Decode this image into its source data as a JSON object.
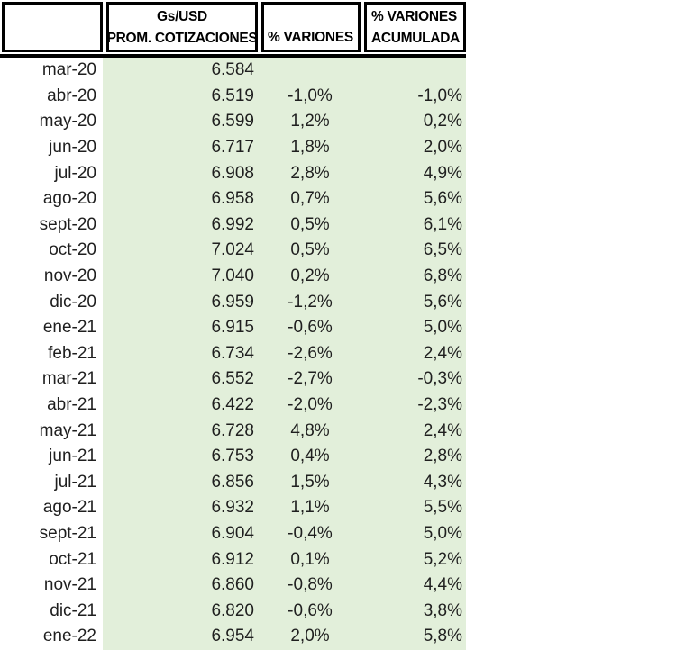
{
  "colors": {
    "fill_green": "#e2efda",
    "border_black": "#000000",
    "data_text": "#1f1f1f",
    "header_bg": "#ffffff"
  },
  "chart_data": {
    "type": "table",
    "columns": [
      {
        "line1": "",
        "line2": ""
      },
      {
        "line1": "Gs/USD",
        "line2": "PROM. COTIZACIONES"
      },
      {
        "line1": "",
        "line2": "% VARIONES"
      },
      {
        "line1": "% VARIONES",
        "line2": "ACUMULADA"
      }
    ],
    "rows": [
      {
        "month": "mar-20",
        "rate": "6.584",
        "var": "",
        "var_acum": ""
      },
      {
        "month": "abr-20",
        "rate": "6.519",
        "var": "-1,0%",
        "var_acum": "-1,0%"
      },
      {
        "month": "may-20",
        "rate": "6.599",
        "var": "1,2%",
        "var_acum": "0,2%"
      },
      {
        "month": "jun-20",
        "rate": "6.717",
        "var": "1,8%",
        "var_acum": "2,0%"
      },
      {
        "month": "jul-20",
        "rate": "6.908",
        "var": "2,8%",
        "var_acum": "4,9%"
      },
      {
        "month": "ago-20",
        "rate": "6.958",
        "var": "0,7%",
        "var_acum": "5,6%"
      },
      {
        "month": "sept-20",
        "rate": "6.992",
        "var": "0,5%",
        "var_acum": "6,1%"
      },
      {
        "month": "oct-20",
        "rate": "7.024",
        "var": "0,5%",
        "var_acum": "6,5%"
      },
      {
        "month": "nov-20",
        "rate": "7.040",
        "var": "0,2%",
        "var_acum": "6,8%"
      },
      {
        "month": "dic-20",
        "rate": "6.959",
        "var": "-1,2%",
        "var_acum": "5,6%"
      },
      {
        "month": "ene-21",
        "rate": "6.915",
        "var": "-0,6%",
        "var_acum": "5,0%"
      },
      {
        "month": "feb-21",
        "rate": "6.734",
        "var": "-2,6%",
        "var_acum": "2,4%"
      },
      {
        "month": "mar-21",
        "rate": "6.552",
        "var": "-2,7%",
        "var_acum": "-0,3%"
      },
      {
        "month": "abr-21",
        "rate": "6.422",
        "var": "-2,0%",
        "var_acum": "-2,3%"
      },
      {
        "month": "may-21",
        "rate": "6.728",
        "var": "4,8%",
        "var_acum": "2,4%"
      },
      {
        "month": "jun-21",
        "rate": "6.753",
        "var": "0,4%",
        "var_acum": "2,8%"
      },
      {
        "month": "jul-21",
        "rate": "6.856",
        "var": "1,5%",
        "var_acum": "4,3%"
      },
      {
        "month": "ago-21",
        "rate": "6.932",
        "var": "1,1%",
        "var_acum": "5,5%"
      },
      {
        "month": "sept-21",
        "rate": "6.904",
        "var": "-0,4%",
        "var_acum": "5,0%"
      },
      {
        "month": "oct-21",
        "rate": "6.912",
        "var": "0,1%",
        "var_acum": "5,2%"
      },
      {
        "month": "nov-21",
        "rate": "6.860",
        "var": "-0,8%",
        "var_acum": "4,4%"
      },
      {
        "month": "dic-21",
        "rate": "6.820",
        "var": "-0,6%",
        "var_acum": "3,8%"
      },
      {
        "month": "ene-22",
        "rate": "6.954",
        "var": "2,0%",
        "var_acum": "5,8%"
      }
    ]
  }
}
